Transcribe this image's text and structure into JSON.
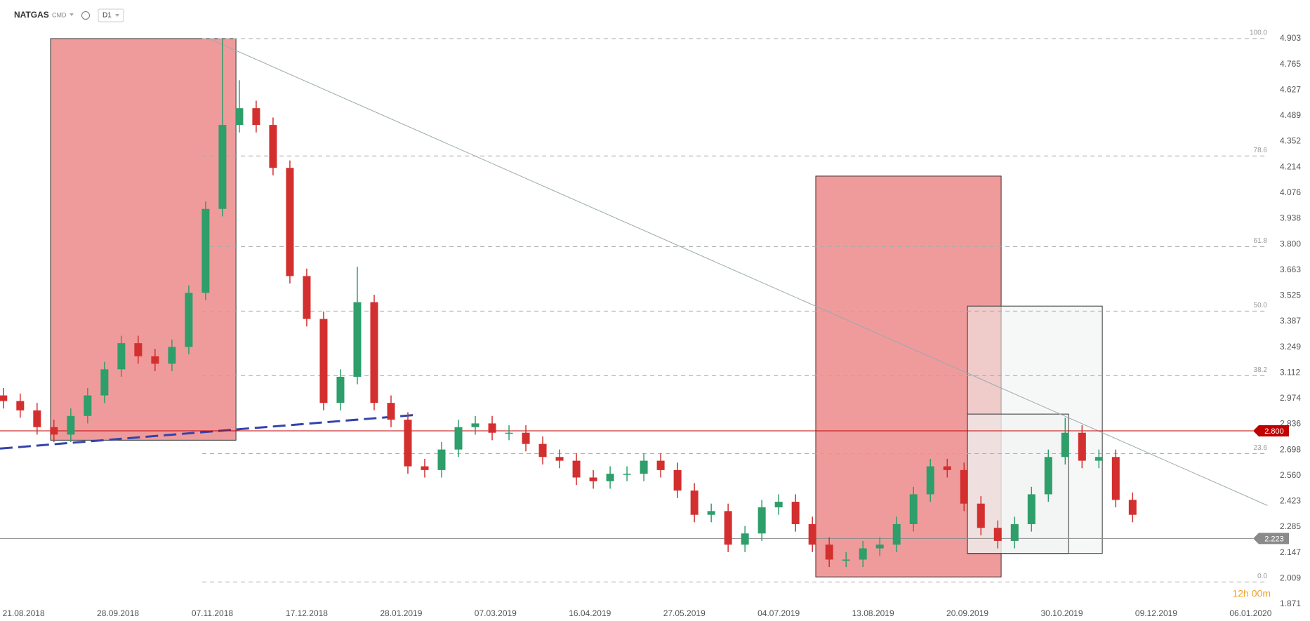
{
  "header": {
    "symbol": "NATGAS",
    "market": "CMD",
    "timeframe": "D1",
    "timer": "12h 00m"
  },
  "chart_data": {
    "type": "candlestick",
    "xlim": [
      0,
      378
    ],
    "ylim": [
      1.871,
      5.11
    ],
    "xticks": [
      {
        "value": 7,
        "label": "21.08.2018"
      },
      {
        "value": 35,
        "label": "28.09.2018"
      },
      {
        "value": 63,
        "label": "07.11.2018"
      },
      {
        "value": 91,
        "label": "17.12.2018"
      },
      {
        "value": 119,
        "label": "28.01.2019"
      },
      {
        "value": 147,
        "label": "07.03.2019"
      },
      {
        "value": 175,
        "label": "16.04.2019"
      },
      {
        "value": 203,
        "label": "27.05.2019"
      },
      {
        "value": 231,
        "label": "04.07.2019"
      },
      {
        "value": 259,
        "label": "13.08.2019"
      },
      {
        "value": 287,
        "label": "20.09.2019"
      },
      {
        "value": 315,
        "label": "30.10.2019"
      },
      {
        "value": 343,
        "label": "09.12.2019"
      },
      {
        "value": 371,
        "label": "06.01.2020"
      }
    ],
    "yticks": [
      4.903,
      4.765,
      4.627,
      4.489,
      4.352,
      4.214,
      4.076,
      3.938,
      {
        "value": 3.8,
        "label": "3.800"
      },
      3.663,
      3.525,
      3.387,
      3.249,
      3.112,
      2.974,
      2.836,
      2.698,
      {
        "value": 2.56,
        "label": "2.560"
      },
      2.423,
      2.285,
      2.147,
      2.009,
      1.871
    ],
    "up_color": "#2e9e6a",
    "down_color": "#d32f2f",
    "x": [
      1,
      6,
      11,
      16,
      21,
      26,
      31,
      36,
      41,
      46,
      51,
      56,
      61,
      66,
      71,
      76,
      81,
      86,
      91,
      96,
      101,
      106,
      111,
      116,
      121,
      126,
      131,
      136,
      141,
      146,
      151,
      156,
      161,
      166,
      171,
      176,
      181,
      186,
      191,
      196,
      201,
      206,
      211,
      216,
      221,
      226,
      231,
      236,
      241,
      246,
      251,
      256,
      261,
      266,
      271,
      276,
      281,
      286,
      291,
      296,
      301,
      306,
      311,
      316,
      321,
      326,
      331,
      336
    ],
    "open": [
      2.99,
      2.96,
      2.91,
      2.82,
      2.78,
      2.88,
      2.99,
      3.13,
      3.27,
      3.2,
      3.16,
      3.25,
      3.54,
      3.99,
      4.44,
      4.53,
      4.44,
      4.21,
      3.63,
      3.4,
      2.95,
      3.09,
      3.49,
      2.95,
      2.86,
      2.61,
      2.59,
      2.7,
      2.82,
      2.84,
      2.79,
      2.79,
      2.73,
      2.66,
      2.64,
      2.55,
      2.53,
      2.57,
      2.57,
      2.64,
      2.59,
      2.48,
      2.35,
      2.37,
      2.19,
      2.25,
      2.39,
      2.42,
      2.3,
      2.19,
      2.11,
      2.11,
      2.17,
      2.19,
      2.3,
      2.46,
      2.61,
      2.59,
      2.41,
      2.28,
      2.21,
      2.3,
      2.46,
      2.66,
      2.79,
      2.64,
      2.66,
      2.43
    ],
    "high": [
      3.03,
      3.0,
      2.95,
      2.86,
      2.92,
      3.03,
      3.17,
      3.31,
      3.31,
      3.24,
      3.29,
      3.58,
      4.03,
      4.9,
      4.68,
      4.57,
      4.48,
      4.25,
      3.67,
      3.44,
      3.13,
      3.68,
      3.53,
      2.99,
      2.9,
      2.65,
      2.74,
      2.86,
      2.88,
      2.88,
      2.83,
      2.83,
      2.77,
      2.7,
      2.68,
      2.59,
      2.61,
      2.61,
      2.68,
      2.68,
      2.63,
      2.52,
      2.41,
      2.41,
      2.29,
      2.43,
      2.46,
      2.46,
      2.34,
      2.23,
      2.15,
      2.21,
      2.23,
      2.34,
      2.5,
      2.65,
      2.65,
      2.63,
      2.45,
      2.32,
      2.34,
      2.5,
      2.7,
      2.87,
      2.83,
      2.7,
      2.7,
      2.47
    ],
    "low": [
      2.92,
      2.87,
      2.78,
      2.74,
      2.74,
      2.84,
      2.95,
      3.09,
      3.16,
      3.12,
      3.12,
      3.21,
      3.5,
      3.95,
      4.4,
      4.4,
      4.17,
      3.59,
      3.36,
      2.91,
      2.91,
      3.05,
      2.91,
      2.82,
      2.57,
      2.55,
      2.55,
      2.66,
      2.78,
      2.75,
      2.75,
      2.69,
      2.62,
      2.6,
      2.51,
      2.49,
      2.49,
      2.53,
      2.53,
      2.55,
      2.44,
      2.31,
      2.31,
      2.15,
      2.15,
      2.21,
      2.35,
      2.26,
      2.15,
      2.07,
      2.07,
      2.07,
      2.13,
      2.15,
      2.26,
      2.42,
      2.55,
      2.37,
      2.24,
      2.17,
      2.17,
      2.26,
      2.42,
      2.62,
      2.6,
      2.6,
      2.39,
      2.31
    ],
    "close": [
      2.96,
      2.91,
      2.82,
      2.78,
      2.88,
      2.99,
      3.13,
      3.27,
      3.2,
      3.16,
      3.25,
      3.54,
      3.99,
      4.44,
      4.53,
      4.44,
      4.21,
      3.63,
      3.4,
      2.95,
      3.09,
      3.49,
      2.95,
      2.86,
      2.61,
      2.59,
      2.7,
      2.82,
      2.84,
      2.79,
      2.79,
      2.73,
      2.66,
      2.64,
      2.55,
      2.53,
      2.57,
      2.57,
      2.64,
      2.59,
      2.48,
      2.35,
      2.37,
      2.19,
      2.25,
      2.39,
      2.42,
      2.3,
      2.19,
      2.11,
      2.11,
      2.17,
      2.19,
      2.3,
      2.46,
      2.61,
      2.59,
      2.41,
      2.28,
      2.21,
      2.3,
      2.46,
      2.66,
      2.79,
      2.64,
      2.66,
      2.43,
      2.35
    ],
    "fib_levels": [
      {
        "label": "100.0",
        "price": 4.903
      },
      {
        "label": "78.6",
        "price": 4.274
      },
      {
        "label": "61.8",
        "price": 3.788
      },
      {
        "label": "50.0",
        "price": 3.442
      },
      {
        "label": "38.2",
        "price": 3.096
      },
      {
        "label": "23.6",
        "price": 2.678
      },
      {
        "label": "0.0",
        "price": 1.99
      }
    ],
    "fib_start": 60,
    "price_lines": [
      {
        "value": 2.8,
        "label": "2.800",
        "color": "#c00000"
      },
      {
        "value": 2.223,
        "color": "#8a8a8a"
      }
    ],
    "zones": [
      {
        "x": [
          15,
          70
        ],
        "y": [
          2.75,
          4.903
        ],
        "color": "#f09b9b"
      },
      {
        "x": [
          242,
          297
        ],
        "y": [
          2.017,
          4.166
        ],
        "color": "#f09b9b"
      },
      {
        "x": [
          287,
          327
        ],
        "y": [
          2.143,
          3.469
        ],
        "color": "#eef3f1"
      },
      {
        "x": [
          287,
          317
        ],
        "y": [
          2.143,
          2.89
        ],
        "color": "#eef3f1"
      }
    ],
    "trendlines": [
      {
        "x": [
          62,
          376
        ],
        "y": [
          4.903,
          2.4
        ],
        "color": "#9aa9b0",
        "dashed": false
      },
      {
        "x": [
          0,
          123
        ],
        "y": [
          2.705,
          2.885
        ],
        "color": "#3344aa",
        "dashed": true
      }
    ]
  }
}
